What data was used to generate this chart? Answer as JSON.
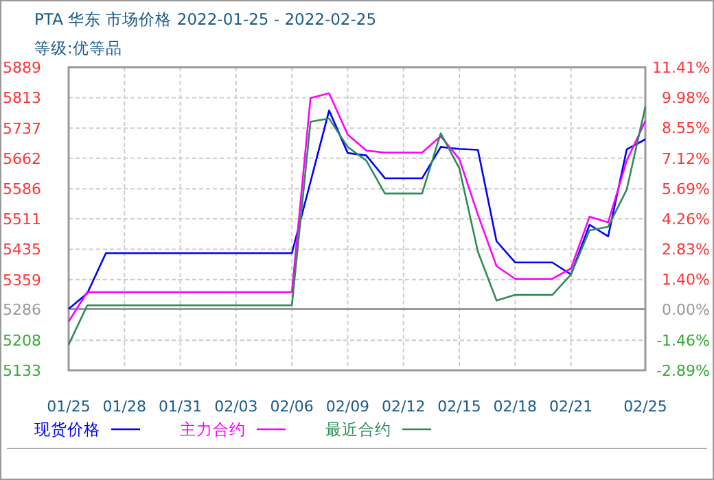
{
  "chart_data": {
    "type": "line",
    "title": "PTA 华东 市场价格 2022-01-25 - 2022-02-25",
    "subtitle": "等级:优等品",
    "x": [
      "2022-01-25",
      "2022-01-26",
      "2022-01-27",
      "2022-02-06",
      "2022-02-07",
      "2022-02-08",
      "2022-02-09",
      "2022-02-10",
      "2022-02-11",
      "2022-02-13",
      "2022-02-14",
      "2022-02-15",
      "2022-02-16",
      "2022-02-17",
      "2022-02-18",
      "2022-02-20",
      "2022-02-21",
      "2022-02-22",
      "2022-02-23",
      "2022-02-24",
      "2022-02-25"
    ],
    "series": [
      {
        "name": "现货价格",
        "color": "#0000ff",
        "values": [
          5286,
          5325,
          5425,
          5425,
          5603,
          5781,
          5675,
          5669,
          5612,
          5612,
          5690,
          5685,
          5683,
          5455,
          5402,
          5402,
          5372,
          5496,
          5467,
          5684,
          5709
        ]
      },
      {
        "name": "主力合约",
        "color": "#ff00ff",
        "values": [
          5255,
          5328,
          5328,
          5328,
          5812,
          5824,
          5721,
          5681,
          5676,
          5676,
          5717,
          5660,
          5521,
          5393,
          5361,
          5361,
          5387,
          5516,
          5502,
          5656,
          5755
        ]
      },
      {
        "name": "最近合约",
        "color": "#2e8b57",
        "values": [
          5197,
          5295,
          5295,
          5295,
          5753,
          5761,
          5690,
          5656,
          5574,
          5574,
          5724,
          5637,
          5429,
          5307,
          5321,
          5321,
          5372,
          5482,
          5491,
          5584,
          5790
        ]
      }
    ],
    "xlim": [
      "2022-01-25",
      "2022-02-25"
    ],
    "xticks": [
      {
        "value": "2022-01-25",
        "label": "01/25"
      },
      {
        "value": "2022-01-28",
        "label": "01/28"
      },
      {
        "value": "2022-01-31",
        "label": "01/31"
      },
      {
        "value": "2022-02-03",
        "label": "02/03"
      },
      {
        "value": "2022-02-06",
        "label": "02/06"
      },
      {
        "value": "2022-02-09",
        "label": "02/09"
      },
      {
        "value": "2022-02-12",
        "label": "02/12"
      },
      {
        "value": "2022-02-15",
        "label": "02/15"
      },
      {
        "value": "2022-02-18",
        "label": "02/18"
      },
      {
        "value": "2022-02-21",
        "label": "02/21"
      },
      {
        "value": "2022-02-25",
        "label": "02/25"
      }
    ],
    "ylim": [
      5133,
      5889
    ],
    "yticks": [
      5133,
      5208,
      5286,
      5359,
      5435,
      5511,
      5586,
      5662,
      5737,
      5813,
      5889
    ],
    "y2lim": [
      -2.89,
      11.41
    ],
    "y2ticks": [
      {
        "value": -2.89,
        "label": "-2.89%"
      },
      {
        "value": -1.46,
        "label": "-1.46%"
      },
      {
        "value": 0,
        "label": "0.00%"
      },
      {
        "value": 1.4,
        "label": "1.40%"
      },
      {
        "value": 2.83,
        "label": "2.83%"
      },
      {
        "value": 4.26,
        "label": "4.26%"
      },
      {
        "value": 5.69,
        "label": "5.69%"
      },
      {
        "value": 7.12,
        "label": "7.12%"
      },
      {
        "value": 8.55,
        "label": "8.55%"
      },
      {
        "value": 9.98,
        "label": "9.98%"
      },
      {
        "value": 11.41,
        "label": "11.41%"
      }
    ],
    "grid": true,
    "legend": "bottom",
    "marker": "none",
    "line_style": "solid"
  }
}
